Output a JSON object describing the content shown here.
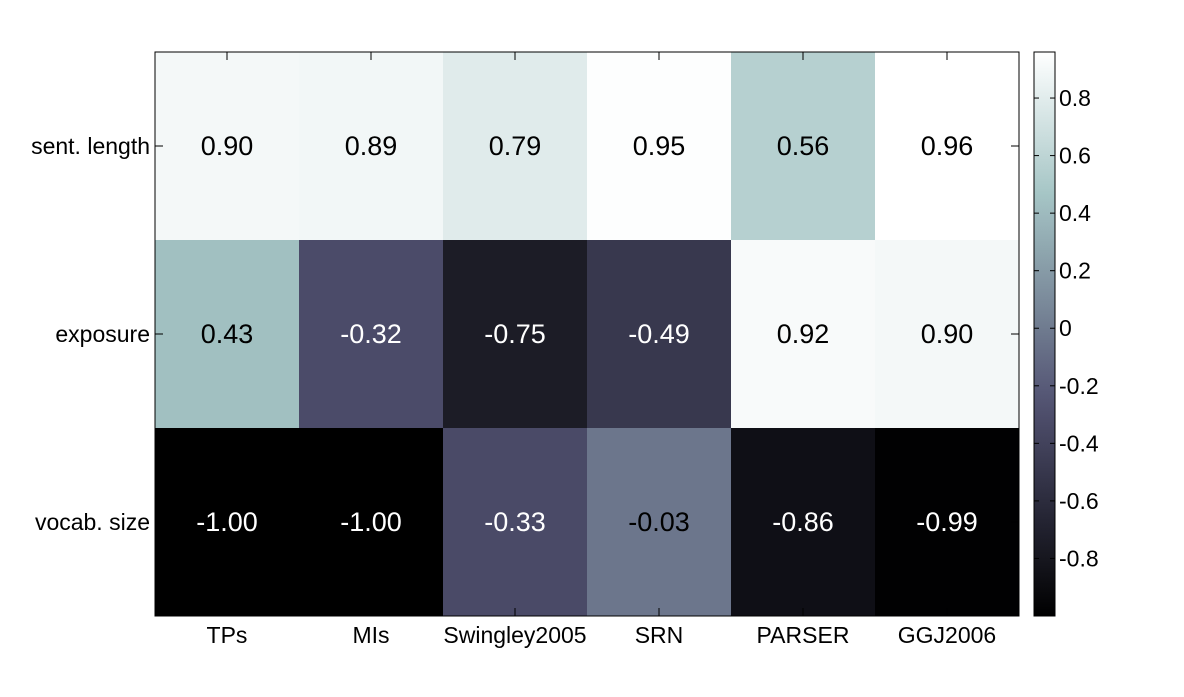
{
  "chart_data": {
    "type": "heatmap",
    "title": "",
    "xlabel": "",
    "ylabel": "",
    "columns": [
      "TPs",
      "MIs",
      "Swingley2005",
      "SRN",
      "PARSER",
      "GGJ2006"
    ],
    "rows": [
      "sent. length",
      "exposure",
      "vocab. size"
    ],
    "values": [
      [
        0.9,
        0.89,
        0.79,
        0.95,
        0.56,
        0.96
      ],
      [
        0.43,
        -0.32,
        -0.75,
        -0.49,
        0.92,
        0.9
      ],
      [
        -1.0,
        -1.0,
        -0.33,
        -0.03,
        -0.86,
        -0.99
      ]
    ],
    "value_labels": [
      [
        "0.90",
        "0.89",
        "0.79",
        "0.95",
        "0.56",
        "0.96"
      ],
      [
        "0.43",
        "-0.32",
        "-0.75",
        "-0.49",
        "0.92",
        "0.90"
      ],
      [
        "-1.00",
        "-1.00",
        "-0.33",
        "-0.03",
        "-0.86",
        "-0.99"
      ]
    ],
    "colormap": "bone",
    "colorbar": {
      "range": [
        -1.0,
        0.96
      ],
      "ticks": [
        0.8,
        0.6,
        0.4,
        0.2,
        0,
        -0.2,
        -0.4,
        -0.6,
        -0.8
      ],
      "tick_labels": [
        "0.8",
        "0.6",
        "0.4",
        "0.2",
        "0",
        "-0.2",
        "-0.4",
        "-0.6",
        "-0.8"
      ],
      "placement": "right"
    },
    "grid": false
  }
}
